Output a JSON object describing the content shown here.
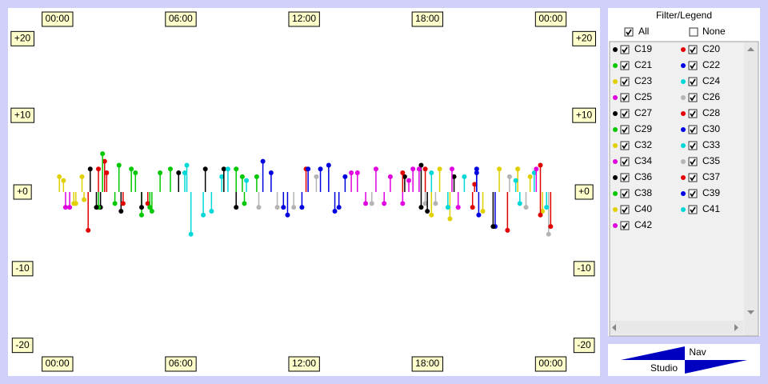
{
  "chart_data": {
    "type": "scatter",
    "xlim": [
      -2.4,
      26.4
    ],
    "ylim": [
      -24,
      24
    ],
    "xticks": [
      {
        "value": 0,
        "label": "00:00"
      },
      {
        "value": 6,
        "label": "06:00"
      },
      {
        "value": 12,
        "label": "12:00"
      },
      {
        "value": 18,
        "label": "18:00"
      },
      {
        "value": 24,
        "label": "00:00"
      }
    ],
    "minor_xticks": [
      3,
      9,
      15,
      21
    ],
    "yticks": [
      {
        "value": 20,
        "label": "+20"
      },
      {
        "value": 10,
        "label": "+10"
      },
      {
        "value": 0,
        "label": "+0"
      },
      {
        "value": -10,
        "label": "-10"
      },
      {
        "value": -20,
        "label": "-20"
      }
    ],
    "minor_yticks": [
      15,
      5,
      -5,
      -15
    ],
    "grid": true,
    "series": [
      {
        "name": "C19",
        "color": "#000000",
        "visible": true,
        "x": [
          1.6,
          2.1,
          5.9,
          7.2,
          17.7
        ],
        "values": [
          3,
          -2,
          2.5,
          3,
          3.5
        ]
      },
      {
        "name": "C20",
        "color": "#e00000",
        "visible": true,
        "x": [
          1.5,
          2.3,
          4.4,
          12.1,
          21.9
        ],
        "values": [
          -5,
          4,
          -1.5,
          3,
          -5
        ]
      },
      {
        "name": "C21",
        "color": "#00c800",
        "visible": true,
        "x": [
          2.2,
          2.0,
          3.0,
          4.1,
          5.0
        ],
        "values": [
          5,
          -2,
          3.5,
          -3,
          2.5
        ]
      },
      {
        "name": "C22",
        "color": "#0000e0",
        "visible": true,
        "x": [
          10.0,
          11.2,
          12.8,
          13.7,
          20.5
        ],
        "values": [
          4,
          -3,
          3,
          -2,
          -3
        ]
      },
      {
        "name": "C23",
        "color": "#e0d000",
        "visible": true,
        "x": [
          0.3,
          0.8,
          1.2,
          18.2,
          21.5
        ],
        "values": [
          1.5,
          -1.5,
          2,
          -3,
          3
        ]
      },
      {
        "name": "C24",
        "color": "#00d8d8",
        "visible": true,
        "x": [
          6.3,
          6.5,
          7.1,
          8.0,
          9.2
        ],
        "values": [
          3.5,
          -5.5,
          -3,
          2,
          1.5
        ]
      },
      {
        "name": "C25",
        "color": "#e000e0",
        "visible": true,
        "x": [
          0.6,
          14.3,
          15.5,
          16.8,
          17.6
        ],
        "values": [
          -2,
          2.5,
          3,
          -1.5,
          3
        ]
      },
      {
        "name": "C26",
        "color": "#b4b4b4",
        "visible": true,
        "x": [
          9.8,
          11.5,
          17.9,
          22.0,
          23.9
        ],
        "values": [
          -2,
          -2,
          -1.5,
          2,
          -5.5
        ]
      },
      {
        "name": "C27",
        "color": "#000000",
        "visible": true,
        "x": [
          1.9,
          3.1,
          4.1,
          8.1,
          8.7
        ],
        "values": [
          -2,
          -2.5,
          -2,
          3,
          -2
        ]
      },
      {
        "name": "C28",
        "color": "#e00000",
        "visible": true,
        "x": [
          2.4,
          17.9,
          20.3,
          23.5,
          24.0
        ],
        "values": [
          2.5,
          3,
          1,
          3.5,
          -4.5
        ]
      },
      {
        "name": "C29",
        "color": "#00c800",
        "visible": true,
        "x": [
          8.7,
          9.1,
          9.7,
          4.5,
          3.6
        ],
        "values": [
          3,
          -1.5,
          2,
          -2,
          3
        ]
      },
      {
        "name": "C30",
        "color": "#0000e0",
        "visible": true,
        "x": [
          10.4,
          11.9,
          13.2,
          20.4,
          21.3
        ],
        "values": [
          2.5,
          -2,
          3.5,
          2.5,
          -4.5
        ]
      },
      {
        "name": "C32",
        "color": "#e0d000",
        "visible": true,
        "x": [
          18.6,
          19.1,
          20.7,
          22.4,
          23.6
        ],
        "values": [
          3,
          -3.5,
          -2.5,
          3,
          -2.5
        ]
      },
      {
        "name": "C33",
        "color": "#00d8d8",
        "visible": true,
        "x": [
          18.2,
          19.0,
          19.8,
          22.5,
          23.2
        ],
        "values": [
          2.5,
          -2,
          2,
          -1.5,
          2.5
        ]
      },
      {
        "name": "C34",
        "color": "#e000e0",
        "visible": true,
        "x": [
          14.6,
          15.9,
          17.3,
          19.5,
          23.3
        ],
        "values": [
          2.5,
          -1.5,
          3,
          -2,
          3
        ]
      },
      {
        "name": "C35",
        "color": "#b4b4b4",
        "visible": true,
        "x": [
          10.7,
          12.6,
          15.3,
          18.4,
          22.8
        ],
        "values": [
          -2,
          2,
          -1.5,
          -1.5,
          -2
        ]
      },
      {
        "name": "C36",
        "color": "#000000",
        "visible": true,
        "x": [
          16.9,
          17.7,
          18.0,
          19.3,
          21.2
        ],
        "values": [
          2,
          -2,
          -2.5,
          2,
          -4.5
        ]
      },
      {
        "name": "C37",
        "color": "#e00000",
        "visible": true,
        "x": [
          2.0,
          3.2,
          16.8,
          20.2,
          23.5
        ],
        "values": [
          3,
          -1.5,
          2.5,
          -2,
          -3
        ]
      },
      {
        "name": "C38",
        "color": "#00c800",
        "visible": true,
        "x": [
          2.8,
          3.8,
          4.6,
          5.5,
          9.0
        ],
        "values": [
          -1.5,
          2.5,
          -2.5,
          3,
          2
        ]
      },
      {
        "name": "C39",
        "color": "#0000e0",
        "visible": true,
        "x": [
          11.0,
          12.2,
          13.5,
          14.0,
          20.4
        ],
        "values": [
          -2,
          3,
          -2.5,
          2,
          3
        ]
      },
      {
        "name": "C40",
        "color": "#e0d000",
        "visible": true,
        "x": [
          0.1,
          0.9,
          1.3,
          22.4,
          23.0
        ],
        "values": [
          2,
          -1.5,
          -1,
          3,
          2
        ]
      },
      {
        "name": "C41",
        "color": "#00d8d8",
        "visible": true,
        "x": [
          6.2,
          7.5,
          8.3,
          22.3,
          23.8
        ],
        "values": [
          2.5,
          -2.5,
          3,
          1.5,
          -2
        ]
      },
      {
        "name": "C42",
        "color": "#e000e0",
        "visible": true,
        "x": [
          0.4,
          15.0,
          16.2,
          17.1,
          19.2
        ],
        "values": [
          -2,
          -1.5,
          2,
          1.5,
          3
        ]
      }
    ]
  },
  "filter": {
    "title": "Filter/Legend",
    "all": {
      "label": "All",
      "checked": true
    },
    "none": {
      "label": "None",
      "checked": false
    }
  },
  "nav": {
    "top": "Nav",
    "bottom": "Studio"
  }
}
